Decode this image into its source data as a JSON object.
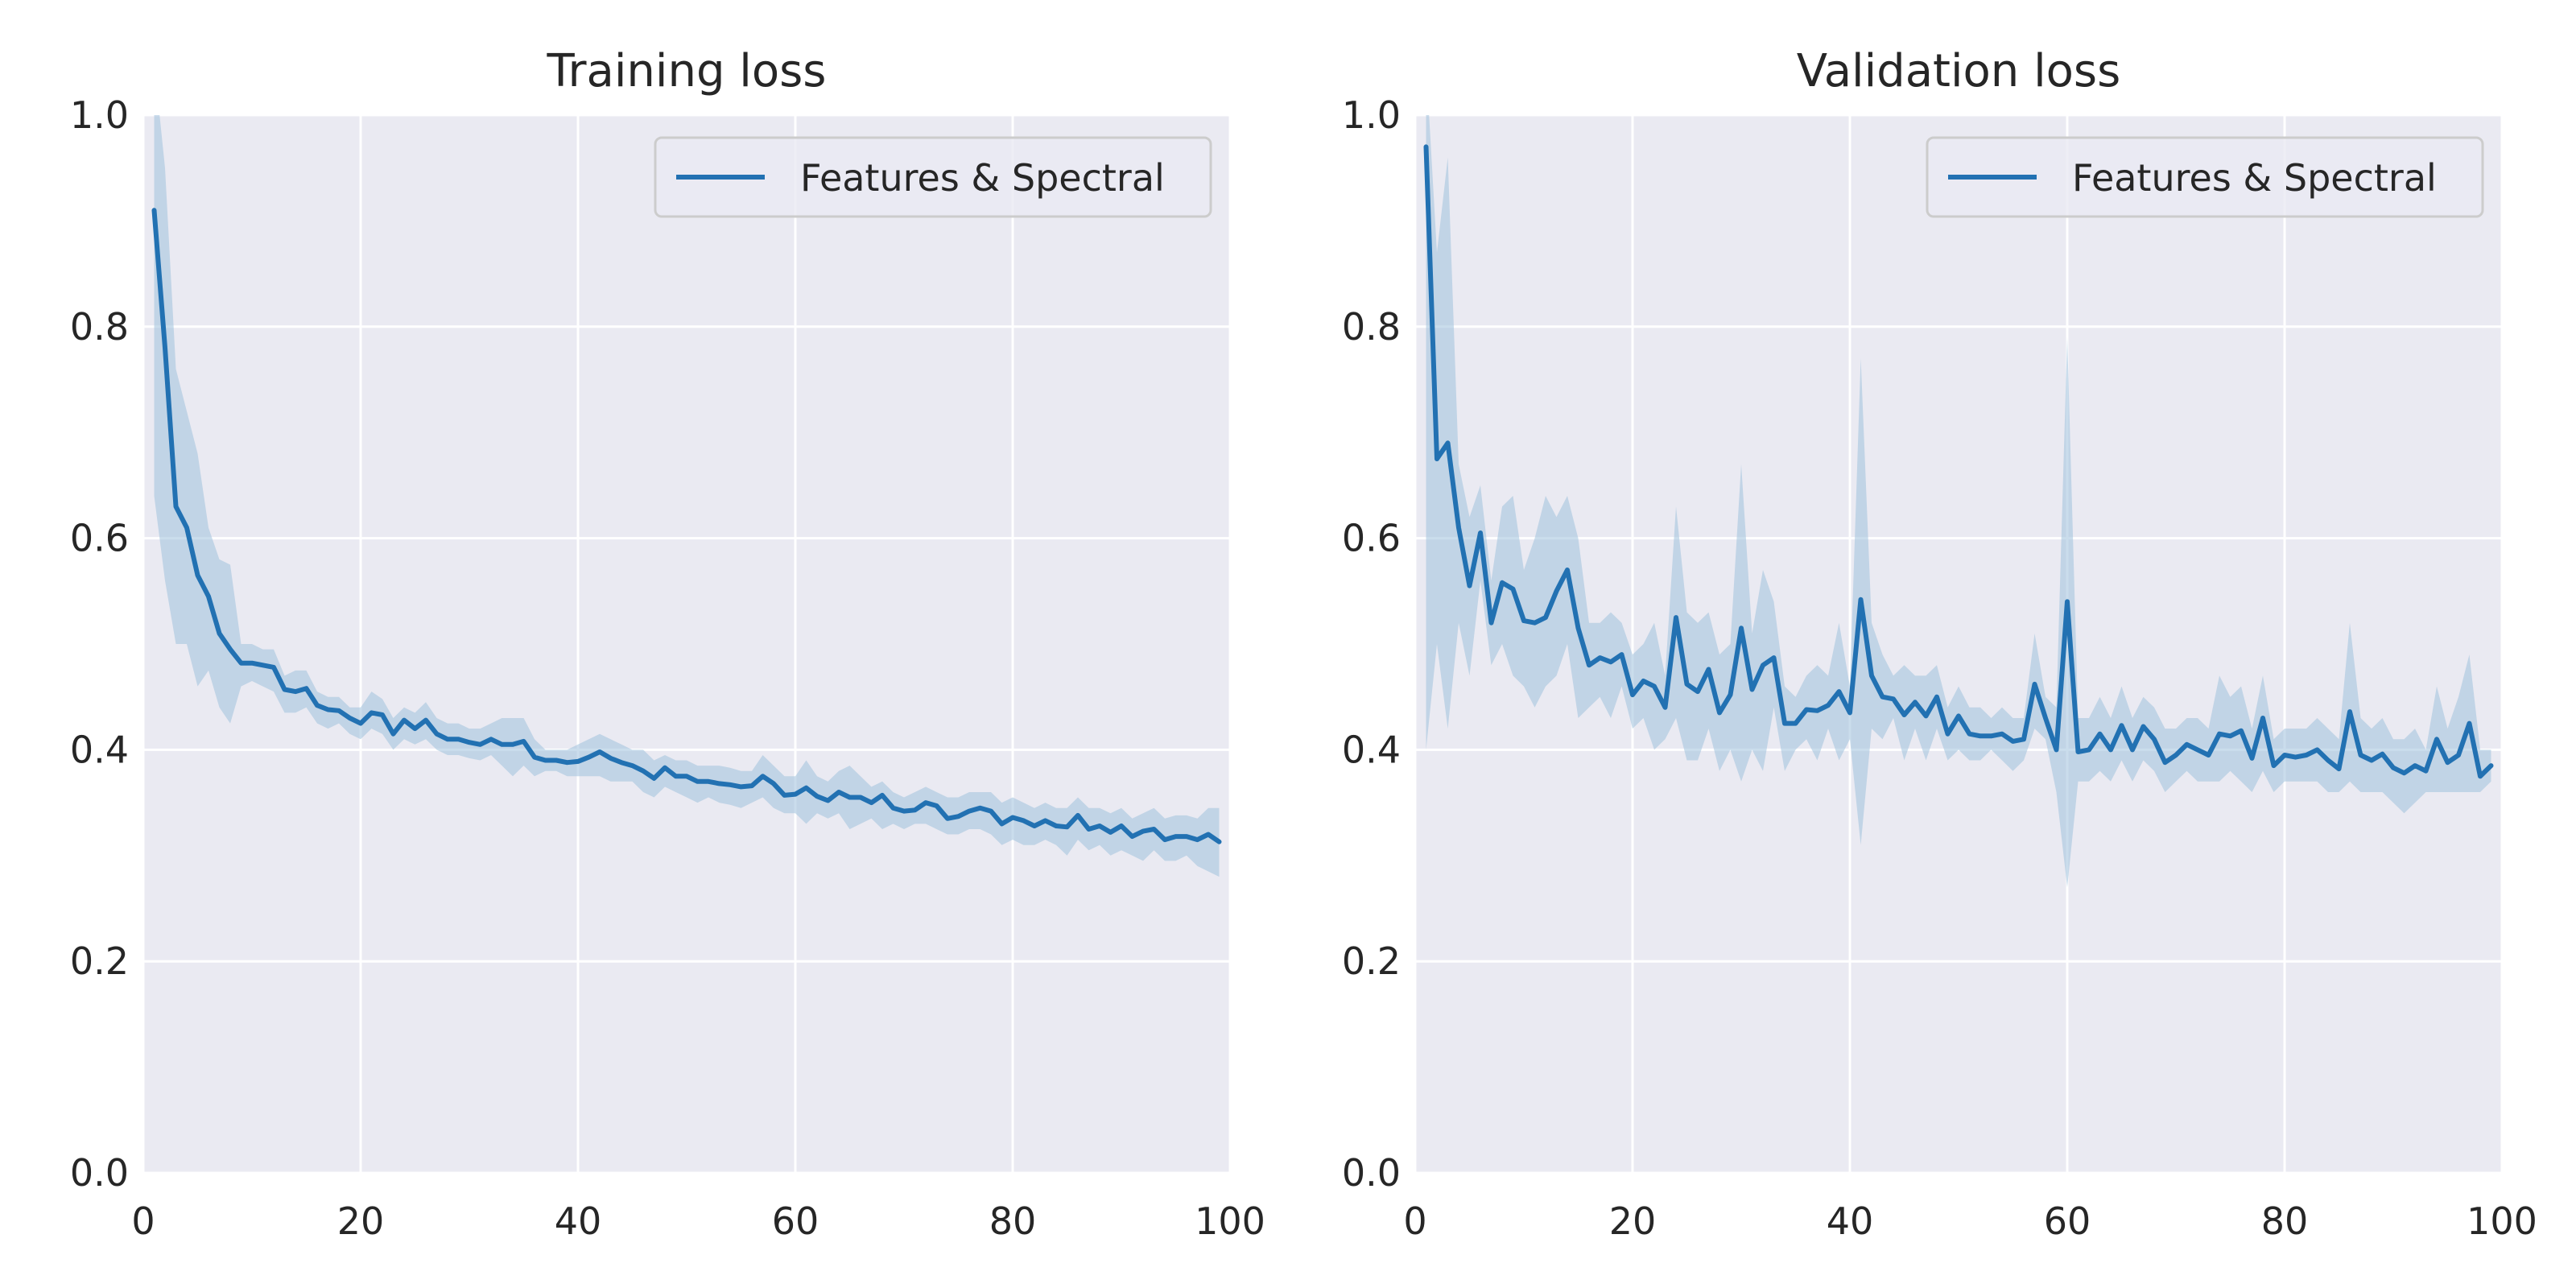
{
  "chart_data": [
    {
      "type": "line",
      "title": "Training loss",
      "xlabel": "",
      "ylabel": "",
      "xlim": [
        0,
        100
      ],
      "ylim": [
        0,
        1
      ],
      "xticks": [
        0,
        20,
        40,
        60,
        80,
        100
      ],
      "yticks": [
        0.0,
        0.2,
        0.4,
        0.6,
        0.8,
        1.0
      ],
      "tick_labels_x": [
        "0",
        "20",
        "40",
        "60",
        "80",
        "100"
      ],
      "tick_labels_y": [
        "0.0",
        "0.2",
        "0.4",
        "0.6",
        "0.8",
        "1.0"
      ],
      "grid": true,
      "legend_position": "top-right",
      "colors": {
        "line": "#2271b2",
        "band": "#9fc1dd",
        "background": "#eaeaf2",
        "grid": "#ffffff"
      },
      "series": [
        {
          "name": "Features & Spectral",
          "x": [
            1,
            2,
            3,
            4,
            5,
            6,
            7,
            8,
            9,
            10,
            11,
            12,
            13,
            14,
            15,
            16,
            17,
            18,
            19,
            20,
            21,
            22,
            23,
            24,
            25,
            26,
            27,
            28,
            29,
            30,
            31,
            32,
            33,
            34,
            35,
            36,
            37,
            38,
            39,
            40,
            41,
            42,
            43,
            44,
            45,
            46,
            47,
            48,
            49,
            50,
            51,
            52,
            53,
            54,
            55,
            56,
            57,
            58,
            59,
            60,
            61,
            62,
            63,
            64,
            65,
            66,
            67,
            68,
            69,
            70,
            71,
            72,
            73,
            74,
            75,
            76,
            77,
            78,
            79,
            80,
            81,
            82,
            83,
            84,
            85,
            86,
            87,
            88,
            89,
            90,
            91,
            92,
            93,
            94,
            95,
            96,
            97,
            98,
            99
          ],
          "values": [
            0.91,
            0.78,
            0.63,
            0.61,
            0.565,
            0.545,
            0.51,
            0.495,
            0.482,
            0.482,
            0.48,
            0.478,
            0.457,
            0.455,
            0.458,
            0.442,
            0.438,
            0.437,
            0.43,
            0.425,
            0.435,
            0.433,
            0.415,
            0.428,
            0.42,
            0.428,
            0.415,
            0.41,
            0.41,
            0.407,
            0.405,
            0.41,
            0.405,
            0.405,
            0.408,
            0.393,
            0.39,
            0.39,
            0.388,
            0.389,
            0.393,
            0.398,
            0.392,
            0.388,
            0.385,
            0.38,
            0.373,
            0.383,
            0.375,
            0.375,
            0.37,
            0.37,
            0.368,
            0.367,
            0.365,
            0.366,
            0.375,
            0.368,
            0.357,
            0.358,
            0.364,
            0.356,
            0.352,
            0.36,
            0.355,
            0.355,
            0.35,
            0.357,
            0.345,
            0.342,
            0.343,
            0.35,
            0.347,
            0.335,
            0.337,
            0.342,
            0.345,
            0.342,
            0.33,
            0.336,
            0.333,
            0.328,
            0.333,
            0.328,
            0.327,
            0.338,
            0.325,
            0.328,
            0.322,
            0.328,
            0.318,
            0.323,
            0.325,
            0.315,
            0.318,
            0.318,
            0.315,
            0.32,
            0.313
          ],
          "lower": [
            0.64,
            0.56,
            0.5,
            0.5,
            0.46,
            0.475,
            0.44,
            0.425,
            0.46,
            0.465,
            0.46,
            0.455,
            0.435,
            0.435,
            0.44,
            0.425,
            0.42,
            0.425,
            0.415,
            0.41,
            0.42,
            0.415,
            0.4,
            0.41,
            0.405,
            0.41,
            0.4,
            0.395,
            0.395,
            0.392,
            0.39,
            0.395,
            0.385,
            0.375,
            0.385,
            0.375,
            0.38,
            0.38,
            0.375,
            0.375,
            0.375,
            0.375,
            0.37,
            0.37,
            0.37,
            0.36,
            0.355,
            0.365,
            0.36,
            0.355,
            0.35,
            0.355,
            0.35,
            0.348,
            0.345,
            0.35,
            0.355,
            0.345,
            0.34,
            0.34,
            0.33,
            0.34,
            0.335,
            0.34,
            0.325,
            0.33,
            0.335,
            0.325,
            0.33,
            0.325,
            0.33,
            0.33,
            0.325,
            0.32,
            0.32,
            0.325,
            0.325,
            0.32,
            0.31,
            0.315,
            0.31,
            0.31,
            0.315,
            0.31,
            0.3,
            0.315,
            0.305,
            0.31,
            0.3,
            0.305,
            0.3,
            0.295,
            0.305,
            0.295,
            0.295,
            0.3,
            0.29,
            0.285,
            0.28
          ],
          "upper": [
            1.05,
            0.95,
            0.76,
            0.72,
            0.68,
            0.61,
            0.58,
            0.575,
            0.5,
            0.5,
            0.495,
            0.495,
            0.47,
            0.475,
            0.475,
            0.455,
            0.45,
            0.45,
            0.44,
            0.44,
            0.455,
            0.448,
            0.43,
            0.44,
            0.435,
            0.445,
            0.43,
            0.425,
            0.425,
            0.42,
            0.42,
            0.425,
            0.43,
            0.43,
            0.43,
            0.41,
            0.4,
            0.4,
            0.4,
            0.405,
            0.41,
            0.415,
            0.41,
            0.405,
            0.4,
            0.4,
            0.39,
            0.395,
            0.39,
            0.39,
            0.385,
            0.385,
            0.385,
            0.383,
            0.38,
            0.38,
            0.395,
            0.385,
            0.375,
            0.375,
            0.39,
            0.375,
            0.37,
            0.38,
            0.385,
            0.375,
            0.365,
            0.37,
            0.36,
            0.355,
            0.36,
            0.365,
            0.36,
            0.355,
            0.355,
            0.36,
            0.36,
            0.36,
            0.35,
            0.355,
            0.35,
            0.345,
            0.35,
            0.345,
            0.345,
            0.355,
            0.345,
            0.345,
            0.34,
            0.345,
            0.335,
            0.34,
            0.345,
            0.335,
            0.338,
            0.338,
            0.335,
            0.345,
            0.345
          ]
        }
      ]
    },
    {
      "type": "line",
      "title": "Validation loss",
      "xlabel": "",
      "ylabel": "",
      "xlim": [
        0,
        100
      ],
      "ylim": [
        0,
        1
      ],
      "xticks": [
        0,
        20,
        40,
        60,
        80,
        100
      ],
      "yticks": [
        0.0,
        0.2,
        0.4,
        0.6,
        0.8,
        1.0
      ],
      "tick_labels_x": [
        "0",
        "20",
        "40",
        "60",
        "80",
        "100"
      ],
      "tick_labels_y": [
        "0.0",
        "0.2",
        "0.4",
        "0.6",
        "0.8",
        "1.0"
      ],
      "grid": true,
      "legend_position": "top-right",
      "colors": {
        "line": "#2271b2",
        "band": "#9fc1dd",
        "background": "#eaeaf2",
        "grid": "#ffffff"
      },
      "series": [
        {
          "name": "Features & Spectral",
          "x": [
            1,
            2,
            3,
            4,
            5,
            6,
            7,
            8,
            9,
            10,
            11,
            12,
            13,
            14,
            15,
            16,
            17,
            18,
            19,
            20,
            21,
            22,
            23,
            24,
            25,
            26,
            27,
            28,
            29,
            30,
            31,
            32,
            33,
            34,
            35,
            36,
            37,
            38,
            39,
            40,
            41,
            42,
            43,
            44,
            45,
            46,
            47,
            48,
            49,
            50,
            51,
            52,
            53,
            54,
            55,
            56,
            57,
            58,
            59,
            60,
            61,
            62,
            63,
            64,
            65,
            66,
            67,
            68,
            69,
            70,
            71,
            72,
            73,
            74,
            75,
            76,
            77,
            78,
            79,
            80,
            81,
            82,
            83,
            84,
            85,
            86,
            87,
            88,
            89,
            90,
            91,
            92,
            93,
            94,
            95,
            96,
            97,
            98,
            99
          ],
          "values": [
            0.97,
            0.675,
            0.69,
            0.61,
            0.555,
            0.605,
            0.52,
            0.558,
            0.552,
            0.522,
            0.52,
            0.525,
            0.55,
            0.57,
            0.515,
            0.48,
            0.487,
            0.483,
            0.49,
            0.452,
            0.465,
            0.46,
            0.44,
            0.525,
            0.462,
            0.455,
            0.476,
            0.435,
            0.452,
            0.515,
            0.457,
            0.48,
            0.487,
            0.425,
            0.425,
            0.438,
            0.437,
            0.442,
            0.455,
            0.435,
            0.542,
            0.47,
            0.45,
            0.448,
            0.433,
            0.445,
            0.432,
            0.45,
            0.415,
            0.432,
            0.415,
            0.413,
            0.413,
            0.415,
            0.408,
            0.41,
            0.462,
            0.43,
            0.4,
            0.54,
            0.398,
            0.4,
            0.415,
            0.4,
            0.423,
            0.4,
            0.422,
            0.41,
            0.388,
            0.395,
            0.405,
            0.4,
            0.395,
            0.415,
            0.413,
            0.418,
            0.392,
            0.43,
            0.385,
            0.395,
            0.393,
            0.395,
            0.4,
            0.39,
            0.382,
            0.436,
            0.395,
            0.39,
            0.396,
            0.383,
            0.378,
            0.385,
            0.38,
            0.41,
            0.388,
            0.395,
            0.425,
            0.375,
            0.385
          ],
          "lower": [
            0.4,
            0.5,
            0.42,
            0.52,
            0.47,
            0.56,
            0.48,
            0.5,
            0.47,
            0.46,
            0.44,
            0.46,
            0.47,
            0.5,
            0.43,
            0.44,
            0.45,
            0.43,
            0.46,
            0.42,
            0.43,
            0.4,
            0.41,
            0.43,
            0.39,
            0.39,
            0.42,
            0.38,
            0.4,
            0.37,
            0.4,
            0.38,
            0.44,
            0.38,
            0.4,
            0.41,
            0.39,
            0.42,
            0.39,
            0.41,
            0.31,
            0.42,
            0.41,
            0.43,
            0.39,
            0.42,
            0.39,
            0.42,
            0.39,
            0.4,
            0.39,
            0.39,
            0.4,
            0.39,
            0.38,
            0.39,
            0.42,
            0.41,
            0.36,
            0.27,
            0.37,
            0.37,
            0.38,
            0.37,
            0.39,
            0.37,
            0.39,
            0.38,
            0.36,
            0.37,
            0.38,
            0.37,
            0.37,
            0.37,
            0.38,
            0.37,
            0.36,
            0.38,
            0.36,
            0.37,
            0.37,
            0.37,
            0.37,
            0.36,
            0.36,
            0.37,
            0.36,
            0.36,
            0.36,
            0.35,
            0.34,
            0.35,
            0.36,
            0.36,
            0.36,
            0.36,
            0.36,
            0.36,
            0.37
          ],
          "upper": [
            1.05,
            0.87,
            0.96,
            0.67,
            0.62,
            0.65,
            0.56,
            0.63,
            0.64,
            0.57,
            0.6,
            0.64,
            0.62,
            0.64,
            0.6,
            0.52,
            0.52,
            0.53,
            0.52,
            0.49,
            0.5,
            0.52,
            0.47,
            0.63,
            0.53,
            0.52,
            0.53,
            0.49,
            0.5,
            0.67,
            0.51,
            0.57,
            0.54,
            0.46,
            0.45,
            0.47,
            0.48,
            0.47,
            0.52,
            0.46,
            0.77,
            0.52,
            0.49,
            0.47,
            0.48,
            0.47,
            0.47,
            0.48,
            0.44,
            0.46,
            0.44,
            0.44,
            0.43,
            0.44,
            0.43,
            0.43,
            0.51,
            0.45,
            0.44,
            0.79,
            0.43,
            0.43,
            0.45,
            0.43,
            0.46,
            0.43,
            0.45,
            0.44,
            0.42,
            0.42,
            0.43,
            0.43,
            0.42,
            0.47,
            0.45,
            0.46,
            0.42,
            0.47,
            0.41,
            0.42,
            0.42,
            0.42,
            0.43,
            0.42,
            0.41,
            0.52,
            0.43,
            0.42,
            0.43,
            0.41,
            0.41,
            0.42,
            0.4,
            0.46,
            0.42,
            0.45,
            0.49,
            0.4,
            0.4
          ]
        }
      ]
    }
  ]
}
